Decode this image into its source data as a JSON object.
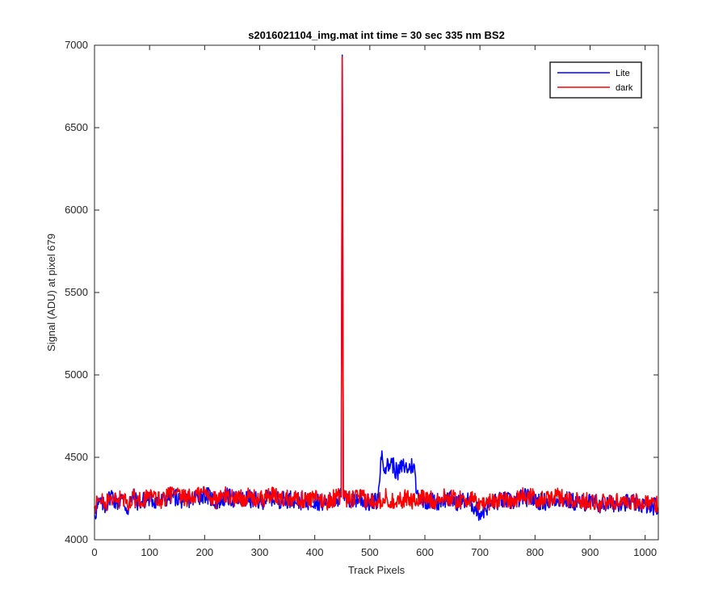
{
  "chart_data": {
    "type": "line",
    "title": "s2016021104_img.mat int time = 30 sec  335 nm BS2",
    "xlabel": "Track Pixels",
    "ylabel": "Signal (ADU) at pixel 679",
    "xlim": [
      0,
      1024
    ],
    "ylim": [
      4000,
      7000
    ],
    "xticks": [
      0,
      100,
      200,
      300,
      400,
      500,
      600,
      700,
      800,
      900,
      1000
    ],
    "yticks": [
      4000,
      4500,
      5000,
      5500,
      6000,
      6500,
      7000
    ],
    "grid": false,
    "legend_position": "top-right",
    "series": [
      {
        "name": "Lite",
        "color": "#0000ff",
        "x": [
          0,
          10,
          20,
          30,
          40,
          50,
          60,
          70,
          80,
          90,
          100,
          120,
          140,
          160,
          180,
          200,
          220,
          240,
          260,
          280,
          300,
          320,
          340,
          360,
          380,
          400,
          420,
          440,
          448,
          450,
          452,
          460,
          480,
          500,
          515,
          520,
          530,
          540,
          550,
          560,
          570,
          580,
          585,
          600,
          620,
          640,
          660,
          680,
          690,
          700,
          720,
          740,
          760,
          780,
          800,
          820,
          840,
          860,
          880,
          900,
          920,
          940,
          960,
          980,
          1000,
          1010,
          1020,
          1024
        ],
        "y": [
          4150,
          4230,
          4200,
          4280,
          4220,
          4250,
          4180,
          4260,
          4220,
          4240,
          4250,
          4230,
          4270,
          4240,
          4250,
          4280,
          4230,
          4260,
          4240,
          4250,
          4230,
          4260,
          4240,
          4250,
          4230,
          4240,
          4220,
          4250,
          4260,
          6940,
          4260,
          4230,
          4250,
          4220,
          4240,
          4500,
          4440,
          4470,
          4400,
          4450,
          4430,
          4460,
          4280,
          4240,
          4230,
          4250,
          4230,
          4240,
          4200,
          4160,
          4220,
          4240,
          4230,
          4260,
          4240,
          4230,
          4250,
          4240,
          4220,
          4230,
          4210,
          4220,
          4230,
          4220,
          4210,
          4200,
          4210,
          4170
        ]
      },
      {
        "name": "dark",
        "color": "#ff0000",
        "x": [
          0,
          10,
          20,
          30,
          40,
          50,
          60,
          70,
          80,
          90,
          100,
          120,
          140,
          160,
          180,
          200,
          220,
          240,
          260,
          280,
          300,
          320,
          340,
          360,
          380,
          400,
          420,
          440,
          448,
          450,
          452,
          460,
          480,
          500,
          515,
          520,
          530,
          540,
          550,
          560,
          570,
          580,
          585,
          600,
          620,
          640,
          660,
          680,
          690,
          700,
          720,
          740,
          760,
          780,
          800,
          820,
          840,
          860,
          880,
          900,
          920,
          940,
          960,
          980,
          1000,
          1010,
          1020,
          1024
        ],
        "y": [
          4200,
          4240,
          4210,
          4270,
          4230,
          4260,
          4200,
          4270,
          4230,
          4250,
          4260,
          4240,
          4280,
          4250,
          4260,
          4290,
          4240,
          4270,
          4250,
          4260,
          4240,
          4270,
          4250,
          4260,
          4240,
          4250,
          4230,
          4260,
          4270,
          6930,
          4250,
          4240,
          4260,
          4230,
          4250,
          4240,
          4260,
          4230,
          4250,
          4240,
          4260,
          4230,
          4250,
          4250,
          4240,
          4260,
          4240,
          4250,
          4230,
          4220,
          4230,
          4250,
          4240,
          4270,
          4250,
          4240,
          4260,
          4250,
          4230,
          4240,
          4220,
          4230,
          4240,
          4230,
          4220,
          4210,
          4220,
          4180
        ]
      }
    ]
  }
}
